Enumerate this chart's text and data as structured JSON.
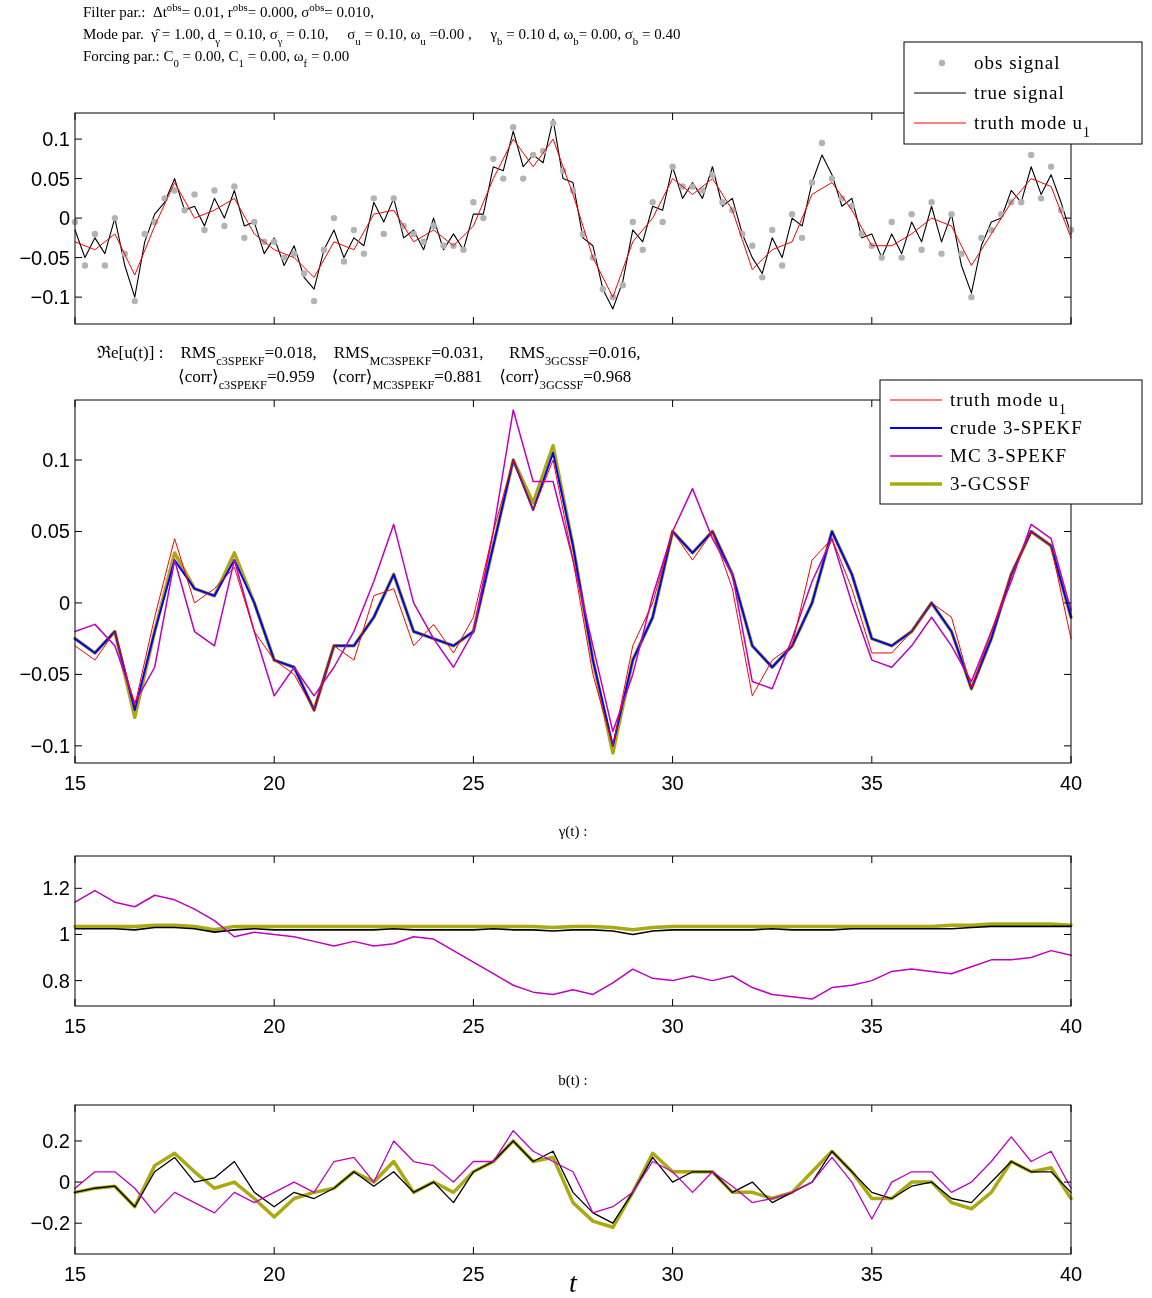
{
  "chart_data": [
    {
      "type": "line",
      "annotations": [
        "Filter par.:  Δt$^{obs}$= 0.01, r$^{obs}$= 0.000, σ$^{obs}$= 0.010,",
        "Mode par.  γ̂ = 1.00, d$_{γ}$ = 0.10, σ$_{γ}$ = 0.10,     σ$_{u}$ = 0.10, ω$_{u}$ =0.00 ,     γ$_{b}$ = 0.10 d, ω$_{b}$= 0.00, σ$_{b}$ = 0.40",
        "Forcing par.: C$_{0}$ = 0.00, C$_{1}$ = 0.00, ω$_{f}$ = 0.00"
      ],
      "x": [
        15,
        15.25,
        15.5,
        15.75,
        16,
        16.25,
        16.5,
        16.75,
        17,
        17.25,
        17.5,
        17.75,
        18,
        18.25,
        18.5,
        18.75,
        19,
        19.25,
        19.5,
        19.75,
        20,
        20.25,
        20.5,
        20.75,
        21,
        21.25,
        21.5,
        21.75,
        22,
        22.25,
        22.5,
        22.75,
        23,
        23.25,
        23.5,
        23.75,
        24,
        24.25,
        24.5,
        24.75,
        25,
        25.25,
        25.5,
        25.75,
        26,
        26.25,
        26.5,
        26.75,
        27,
        27.25,
        27.5,
        27.75,
        28,
        28.25,
        28.5,
        28.75,
        29,
        29.25,
        29.5,
        29.75,
        30,
        30.25,
        30.5,
        30.75,
        31,
        31.25,
        31.5,
        31.75,
        32,
        32.25,
        32.5,
        32.75,
        33,
        33.25,
        33.5,
        33.75,
        34,
        34.25,
        34.5,
        34.75,
        35,
        35.25,
        35.5,
        35.75,
        36,
        36.25,
        36.5,
        36.75,
        37,
        37.25,
        37.5,
        37.75,
        38,
        38.25,
        38.5,
        38.75,
        39,
        39.25,
        39.5,
        39.75,
        40
      ],
      "series": [
        {
          "name": "obs signal",
          "type": "scatter",
          "marker": "circle",
          "color": "#b3b3b3",
          "values": [
            -0.005,
            -0.06,
            -0.02,
            -0.06,
            0.0,
            -0.045,
            -0.105,
            -0.02,
            -0.005,
            0.025,
            0.035,
            0.01,
            0.03,
            -0.015,
            0.035,
            -0.01,
            0.04,
            -0.025,
            -0.005,
            -0.03,
            -0.03,
            -0.05,
            -0.045,
            -0.07,
            -0.105,
            -0.04,
            0.0,
            -0.055,
            -0.015,
            -0.045,
            0.025,
            -0.02,
            0.025,
            -0.01,
            -0.02,
            -0.03,
            -0.01,
            -0.035,
            -0.035,
            -0.04,
            0.02,
            0.0,
            0.075,
            0.05,
            0.115,
            0.05,
            0.08,
            0.085,
            0.12,
            0.06,
            0.035,
            -0.02,
            -0.05,
            -0.09,
            -0.1,
            -0.085,
            -0.005,
            -0.04,
            0.02,
            -0.005,
            0.065,
            0.04,
            0.04,
            0.035,
            0.055,
            0.02,
            0.01,
            -0.02,
            -0.035,
            -0.075,
            -0.015,
            -0.06,
            0.005,
            -0.025,
            0.045,
            0.095,
            0.05,
            0.025,
            0.015,
            -0.02,
            -0.035,
            -0.05,
            -0.005,
            -0.05,
            0.005,
            -0.04,
            0.02,
            -0.045,
            0.005,
            -0.045,
            -0.1,
            -0.025,
            -0.015,
            0.005,
            0.02,
            0.02,
            0.08,
            0.025,
            0.065,
            0.01,
            -0.015
          ]
        },
        {
          "name": "true signal",
          "color": "#000000",
          "values": [
            -0.015,
            -0.05,
            -0.025,
            -0.045,
            0.0,
            -0.06,
            -0.1,
            -0.03,
            0.005,
            0.02,
            0.05,
            0.01,
            0.015,
            -0.01,
            0.025,
            0.0,
            0.035,
            -0.01,
            -0.005,
            -0.045,
            -0.025,
            -0.06,
            -0.035,
            -0.075,
            -0.09,
            -0.04,
            -0.015,
            -0.05,
            -0.025,
            -0.035,
            0.02,
            -0.005,
            0.025,
            -0.025,
            -0.015,
            -0.04,
            0.0,
            -0.04,
            -0.02,
            -0.04,
            0.005,
            0.005,
            0.065,
            0.06,
            0.11,
            0.065,
            0.08,
            0.07,
            0.125,
            0.05,
            0.045,
            -0.025,
            -0.035,
            -0.09,
            -0.115,
            -0.08,
            -0.015,
            -0.03,
            0.015,
            0.01,
            0.065,
            0.025,
            0.045,
            0.025,
            0.065,
            0.015,
            0.025,
            -0.02,
            -0.05,
            -0.07,
            -0.025,
            -0.05,
            0.0,
            -0.01,
            0.045,
            0.08,
            0.055,
            0.015,
            0.025,
            -0.025,
            -0.02,
            -0.05,
            -0.02,
            -0.045,
            -0.005,
            -0.03,
            0.015,
            -0.03,
            0.005,
            -0.06,
            -0.095,
            -0.035,
            -0.005,
            0.0,
            0.035,
            0.02,
            0.065,
            0.03,
            0.055,
            0.02,
            -0.02
          ]
        },
        {
          "name": "truth mode u$_{1}$",
          "color": "#ff0000",
          "x": [
            15,
            15.5,
            16,
            16.5,
            17,
            17.5,
            18,
            18.5,
            19,
            19.5,
            20,
            20.5,
            21,
            21.5,
            22,
            22.5,
            23,
            23.5,
            24,
            24.5,
            25,
            25.5,
            26,
            26.5,
            27,
            27.5,
            28,
            28.5,
            29,
            29.5,
            30,
            30.5,
            31,
            31.5,
            32,
            32.5,
            33,
            33.5,
            34,
            34.5,
            35,
            35.5,
            36,
            36.5,
            37,
            37.5,
            38,
            38.5,
            39,
            39.5,
            40
          ],
          "values": [
            -0.03,
            -0.04,
            -0.02,
            -0.072,
            -0.01,
            0.045,
            0.0,
            0.01,
            0.025,
            -0.02,
            -0.04,
            -0.05,
            -0.075,
            -0.03,
            -0.04,
            0.005,
            0.01,
            -0.03,
            -0.015,
            -0.035,
            -0.01,
            0.05,
            0.1,
            0.065,
            0.1,
            0.03,
            -0.05,
            -0.1,
            -0.03,
            0.0,
            0.05,
            0.03,
            0.05,
            0.01,
            -0.065,
            -0.04,
            -0.03,
            0.03,
            0.045,
            0.01,
            -0.035,
            -0.035,
            -0.02,
            0.0,
            -0.01,
            -0.06,
            -0.02,
            0.02,
            0.05,
            0.04,
            -0.025
          ]
        }
      ],
      "xlim": [
        15,
        40
      ],
      "xticks": [
        15,
        20,
        25,
        30,
        35,
        40
      ],
      "ylim": [
        -0.134,
        0.133
      ],
      "yticks": [
        {
          "value": -0.1,
          "label": "−0.1"
        },
        {
          "value": -0.05,
          "label": "−0.05"
        },
        0,
        0.05,
        0.1
      ],
      "tick_labels": "y",
      "legend": "top right"
    },
    {
      "type": "line",
      "title": "ℜe[u(t)] :    RMS$_{c3SPEKF}$=0.018,    RMS$_{MC3SPEKF}$=0.031,      RMS$_{3GCSSF}$=0.016,",
      "subtitle": "⟨corr⟩$_{c3SPEKF}$=0.959    ⟨corr⟩$_{MC3SPEKF}$=0.881    ⟨corr⟩$_{3GCSSF}$=0.968",
      "x": [
        15,
        15.5,
        16,
        16.5,
        17,
        17.5,
        18,
        18.5,
        19,
        19.5,
        20,
        20.5,
        21,
        21.5,
        22,
        22.5,
        23,
        23.5,
        24,
        24.5,
        25,
        25.5,
        26,
        26.5,
        27,
        27.5,
        28,
        28.5,
        29,
        29.5,
        30,
        30.5,
        31,
        31.5,
        32,
        32.5,
        33,
        33.5,
        34,
        34.5,
        35,
        35.5,
        36,
        36.5,
        37,
        37.5,
        38,
        38.5,
        39,
        39.5,
        40
      ],
      "series": [
        {
          "name": "truth mode u$_{1}$",
          "color": "#ff0000",
          "values": [
            -0.03,
            -0.04,
            -0.02,
            -0.072,
            -0.01,
            0.045,
            0.0,
            0.01,
            0.025,
            -0.02,
            -0.04,
            -0.05,
            -0.075,
            -0.03,
            -0.04,
            0.005,
            0.01,
            -0.03,
            -0.015,
            -0.035,
            -0.01,
            0.05,
            0.1,
            0.065,
            0.1,
            0.03,
            -0.05,
            -0.1,
            -0.03,
            0.0,
            0.05,
            0.03,
            0.05,
            0.01,
            -0.065,
            -0.04,
            -0.03,
            0.03,
            0.045,
            0.01,
            -0.035,
            -0.035,
            -0.02,
            0.0,
            -0.01,
            -0.06,
            -0.02,
            0.02,
            0.05,
            0.04,
            -0.025
          ]
        },
        {
          "name": "crude 3-SPEKF",
          "color": "#0000ff",
          "values": [
            -0.025,
            -0.035,
            -0.02,
            -0.075,
            -0.02,
            0.03,
            0.01,
            0.005,
            0.03,
            0.0,
            -0.04,
            -0.045,
            -0.075,
            -0.03,
            -0.03,
            -0.01,
            0.02,
            -0.02,
            -0.025,
            -0.03,
            -0.02,
            0.04,
            0.1,
            0.065,
            0.105,
            0.04,
            -0.04,
            -0.1,
            -0.04,
            -0.01,
            0.05,
            0.035,
            0.05,
            0.02,
            -0.03,
            -0.045,
            -0.03,
            0.0,
            0.05,
            0.02,
            -0.025,
            -0.03,
            -0.02,
            0.0,
            -0.02,
            -0.06,
            -0.025,
            0.02,
            0.05,
            0.04,
            -0.01
          ]
        },
        {
          "name": "MC 3-SPEKF",
          "color": "#c000c0",
          "values": [
            -0.02,
            -0.015,
            -0.03,
            -0.07,
            -0.045,
            0.03,
            -0.02,
            -0.03,
            0.03,
            -0.02,
            -0.065,
            -0.045,
            -0.065,
            -0.045,
            -0.02,
            0.015,
            0.055,
            0.0,
            -0.025,
            -0.045,
            -0.02,
            0.05,
            0.135,
            0.085,
            0.085,
            0.03,
            -0.03,
            -0.09,
            -0.05,
            0.005,
            0.05,
            0.08,
            0.045,
            0.02,
            -0.055,
            -0.06,
            -0.025,
            0.015,
            0.045,
            0.0,
            -0.04,
            -0.045,
            -0.03,
            -0.01,
            -0.03,
            -0.055,
            -0.02,
            0.015,
            0.055,
            0.045,
            -0.005
          ]
        },
        {
          "name": "3-GCSSF",
          "color": "#aaaa10",
          "values": [
            -0.025,
            -0.035,
            -0.02,
            -0.08,
            -0.02,
            0.035,
            0.01,
            0.005,
            0.035,
            0.0,
            -0.04,
            -0.045,
            -0.075,
            -0.03,
            -0.03,
            -0.01,
            0.02,
            -0.02,
            -0.025,
            -0.03,
            -0.02,
            0.04,
            0.1,
            0.07,
            0.11,
            0.04,
            -0.04,
            -0.105,
            -0.04,
            -0.01,
            0.05,
            0.035,
            0.05,
            0.02,
            -0.03,
            -0.045,
            -0.03,
            0.0,
            0.05,
            0.02,
            -0.025,
            -0.03,
            -0.02,
            0.0,
            -0.02,
            -0.06,
            -0.025,
            0.02,
            0.05,
            0.04,
            -0.01
          ]
        }
      ],
      "xlim": [
        15,
        40
      ],
      "xticks": [
        15,
        20,
        25,
        30,
        35,
        40
      ],
      "ylim": [
        -0.112,
        0.142
      ],
      "yticks": [
        {
          "value": -0.1,
          "label": "−0.1"
        },
        {
          "value": -0.05,
          "label": "−0.05"
        },
        0,
        0.05,
        0.1
      ],
      "legend": "top right"
    },
    {
      "type": "line",
      "title": "γ(t) :",
      "x": [
        15,
        15.5,
        16,
        16.5,
        17,
        17.5,
        18,
        18.5,
        19,
        19.5,
        20,
        20.5,
        21,
        21.5,
        22,
        22.5,
        23,
        23.5,
        24,
        24.5,
        25,
        25.5,
        26,
        26.5,
        27,
        27.5,
        28,
        28.5,
        29,
        29.5,
        30,
        30.5,
        31,
        31.5,
        32,
        32.5,
        33,
        33.5,
        34,
        34.5,
        35,
        35.5,
        36,
        36.5,
        37,
        37.5,
        38,
        38.5,
        39,
        39.5,
        40
      ],
      "series": [
        {
          "color": "#000000",
          "values": [
            1.025,
            1.025,
            1.025,
            1.02,
            1.03,
            1.03,
            1.025,
            1.01,
            1.02,
            1.025,
            1.02,
            1.02,
            1.02,
            1.02,
            1.02,
            1.02,
            1.025,
            1.02,
            1.02,
            1.02,
            1.02,
            1.025,
            1.02,
            1.02,
            1.015,
            1.02,
            1.02,
            1.015,
            1.0,
            1.015,
            1.02,
            1.02,
            1.02,
            1.02,
            1.02,
            1.025,
            1.02,
            1.02,
            1.02,
            1.025,
            1.025,
            1.025,
            1.025,
            1.025,
            1.025,
            1.03,
            1.035,
            1.035,
            1.035,
            1.035,
            1.035
          ]
        },
        {
          "color": "#c000c0",
          "values": [
            1.14,
            1.19,
            1.14,
            1.12,
            1.17,
            1.15,
            1.11,
            1.06,
            0.99,
            1.01,
            1.0,
            0.99,
            0.97,
            0.95,
            0.97,
            0.95,
            0.96,
            0.99,
            0.98,
            0.93,
            0.88,
            0.83,
            0.78,
            0.75,
            0.74,
            0.76,
            0.74,
            0.79,
            0.85,
            0.81,
            0.8,
            0.82,
            0.8,
            0.82,
            0.77,
            0.74,
            0.73,
            0.72,
            0.77,
            0.78,
            0.8,
            0.84,
            0.85,
            0.84,
            0.83,
            0.86,
            0.89,
            0.89,
            0.9,
            0.93,
            0.91
          ]
        },
        {
          "color": "#aaaa10",
          "values": [
            1.035,
            1.035,
            1.035,
            1.035,
            1.04,
            1.04,
            1.035,
            1.02,
            1.035,
            1.035,
            1.035,
            1.035,
            1.035,
            1.035,
            1.035,
            1.035,
            1.035,
            1.035,
            1.035,
            1.035,
            1.035,
            1.035,
            1.035,
            1.035,
            1.03,
            1.035,
            1.035,
            1.03,
            1.02,
            1.03,
            1.035,
            1.035,
            1.035,
            1.035,
            1.035,
            1.035,
            1.035,
            1.035,
            1.035,
            1.035,
            1.035,
            1.035,
            1.035,
            1.035,
            1.04,
            1.04,
            1.045,
            1.045,
            1.045,
            1.045,
            1.04
          ]
        }
      ],
      "xlim": [
        15,
        40
      ],
      "xticks": [
        15,
        20,
        25,
        30,
        35,
        40
      ],
      "ylim": [
        0.69,
        1.34
      ],
      "yticks": [
        0.8,
        1,
        1.2
      ]
    },
    {
      "type": "line",
      "title": "b(t) :",
      "xlabel": "t",
      "x": [
        15,
        15.5,
        16,
        16.5,
        17,
        17.5,
        18,
        18.5,
        19,
        19.5,
        20,
        20.5,
        21,
        21.5,
        22,
        22.5,
        23,
        23.5,
        24,
        24.5,
        25,
        25.5,
        26,
        26.5,
        27,
        27.5,
        28,
        28.5,
        29,
        29.5,
        30,
        30.5,
        31,
        31.5,
        32,
        32.5,
        33,
        33.5,
        34,
        34.5,
        35,
        35.5,
        36,
        36.5,
        37,
        37.5,
        38,
        38.5,
        39,
        39.5,
        40
      ],
      "series": [
        {
          "color": "#000000",
          "values": [
            -0.05,
            -0.03,
            -0.02,
            -0.12,
            0.05,
            0.12,
            0.0,
            0.02,
            0.1,
            -0.05,
            -0.12,
            -0.05,
            -0.08,
            -0.03,
            0.05,
            -0.02,
            0.05,
            -0.05,
            0.0,
            -0.1,
            0.05,
            0.1,
            0.2,
            0.1,
            0.15,
            -0.05,
            -0.15,
            -0.2,
            -0.05,
            0.12,
            0.0,
            0.05,
            0.05,
            -0.05,
            0.0,
            -0.1,
            -0.05,
            0.0,
            0.15,
            0.05,
            -0.05,
            -0.08,
            -0.02,
            0.0,
            -0.08,
            -0.1,
            0.0,
            0.1,
            0.05,
            0.05,
            -0.05
          ]
        },
        {
          "color": "#c000c0",
          "values": [
            -0.03,
            0.05,
            0.05,
            -0.03,
            -0.15,
            -0.05,
            -0.1,
            -0.15,
            -0.05,
            -0.1,
            -0.05,
            0.0,
            -0.05,
            0.1,
            0.12,
            0.0,
            0.2,
            0.1,
            0.08,
            0.0,
            0.1,
            0.1,
            0.25,
            0.15,
            0.1,
            0.05,
            -0.15,
            -0.12,
            -0.05,
            0.1,
            0.05,
            -0.05,
            0.05,
            -0.02,
            -0.1,
            -0.08,
            -0.05,
            0.0,
            0.12,
            0.0,
            -0.18,
            0.0,
            0.05,
            0.05,
            -0.05,
            0.0,
            0.1,
            0.22,
            0.1,
            0.15,
            -0.03
          ]
        },
        {
          "color": "#aaaa10",
          "values": [
            -0.05,
            -0.03,
            -0.02,
            -0.12,
            0.08,
            0.14,
            0.05,
            -0.03,
            0.0,
            -0.08,
            -0.17,
            -0.08,
            -0.05,
            -0.03,
            0.05,
            0.0,
            0.1,
            -0.05,
            0.0,
            -0.05,
            0.05,
            0.1,
            0.2,
            0.1,
            0.12,
            -0.1,
            -0.19,
            -0.22,
            -0.05,
            0.14,
            0.05,
            0.05,
            0.05,
            -0.05,
            -0.05,
            -0.08,
            -0.05,
            0.05,
            0.15,
            0.05,
            -0.08,
            -0.08,
            0.0,
            0.0,
            -0.1,
            -0.13,
            -0.05,
            0.1,
            0.05,
            0.07,
            -0.08
          ]
        }
      ],
      "xlim": [
        15,
        40
      ],
      "xticks": [
        15,
        20,
        25,
        30,
        35,
        40
      ],
      "ylim": [
        -0.35,
        0.375
      ],
      "yticks": [
        {
          "value": -0.2,
          "label": "−0.2"
        },
        0,
        0.2
      ]
    }
  ]
}
